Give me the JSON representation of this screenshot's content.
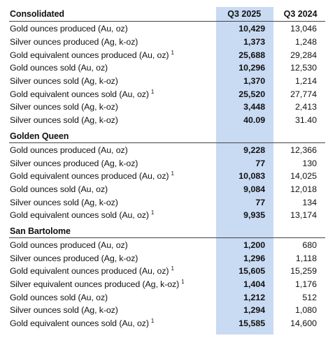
{
  "header": {
    "title": "Consolidated",
    "col1": "Q3 2025",
    "col2": "Q3 2024"
  },
  "sections": [
    {
      "title": "",
      "rows": [
        {
          "label": "Gold ounces produced (Au, oz)",
          "sup": "",
          "q3_2025": "10,429",
          "q3_2024": "13,046"
        },
        {
          "label": "Silver ounces produced (Ag, k-oz)",
          "sup": "",
          "q3_2025": "1,373",
          "q3_2024": "1,248"
        },
        {
          "label": "Gold equivalent ounces produced (Au, oz)",
          "sup": "1",
          "q3_2025": "25,688",
          "q3_2024": "29,284"
        },
        {
          "label": "Gold ounces sold (Au, oz)",
          "sup": "",
          "q3_2025": "10,296",
          "q3_2024": "12,530"
        },
        {
          "label": "Silver ounces sold (Ag, k-oz)",
          "sup": "",
          "q3_2025": "1,370",
          "q3_2024": "1,214"
        },
        {
          "label": "Gold equivalent ounces sold (Au, oz)",
          "sup": "1",
          "q3_2025": "25,520",
          "q3_2024": "27,774"
        },
        {
          "label": "Silver ounces sold (Ag, k-oz)",
          "sup": "",
          "q3_2025": "3,448",
          "q3_2024": "2,413"
        },
        {
          "label": "Silver ounces sold (Ag, k-oz)",
          "sup": "",
          "q3_2025": "40.09",
          "q3_2024": "31.40"
        }
      ]
    },
    {
      "title": "Golden Queen",
      "rows": [
        {
          "label": "Gold ounces produced (Au, oz)",
          "sup": "",
          "q3_2025": "9,228",
          "q3_2024": "12,366"
        },
        {
          "label": "Silver ounces produced (Ag, k-oz)",
          "sup": "",
          "q3_2025": "77",
          "q3_2024": "130"
        },
        {
          "label": "Gold equivalent ounces produced (Au, oz)",
          "sup": "1",
          "q3_2025": "10,083",
          "q3_2024": "14,025"
        },
        {
          "label": "Gold ounces sold (Au, oz)",
          "sup": "",
          "q3_2025": "9,084",
          "q3_2024": "12,018"
        },
        {
          "label": "Silver ounces sold (Ag, k-oz)",
          "sup": "",
          "q3_2025": "77",
          "q3_2024": "134"
        },
        {
          "label": "Gold equivalent ounces sold (Au, oz)",
          "sup": "1",
          "q3_2025": "9,935",
          "q3_2024": "13,174"
        }
      ]
    },
    {
      "title": "San Bartolome",
      "rows": [
        {
          "label": "Gold ounces produced (Au, oz)",
          "sup": "",
          "q3_2025": "1,200",
          "q3_2024": "680"
        },
        {
          "label": "Silver ounces produced (Ag, k-oz)",
          "sup": "",
          "q3_2025": "1,296",
          "q3_2024": "1,118"
        },
        {
          "label": "Gold equivalent ounces produced (Au, oz)",
          "sup": "1",
          "q3_2025": "15,605",
          "q3_2024": "15,259"
        },
        {
          "label": "Silver equivalent ounces produced (Ag, k-oz)",
          "sup": "1",
          "q3_2025": "1,404",
          "q3_2024": "1,176"
        },
        {
          "label": "Gold ounces sold (Au, oz)",
          "sup": "",
          "q3_2025": "1,212",
          "q3_2024": "512"
        },
        {
          "label": "Silver ounces sold (Ag, k-oz)",
          "sup": "",
          "q3_2025": "1,294",
          "q3_2024": "1,080"
        },
        {
          "label": "Gold equivalent ounces sold (Au, oz)",
          "sup": "1",
          "q3_2025": "15,585",
          "q3_2024": "14,600"
        }
      ]
    }
  ],
  "colors": {
    "highlight": "#c9daf3",
    "rule": "#444444",
    "text": "#111111"
  }
}
